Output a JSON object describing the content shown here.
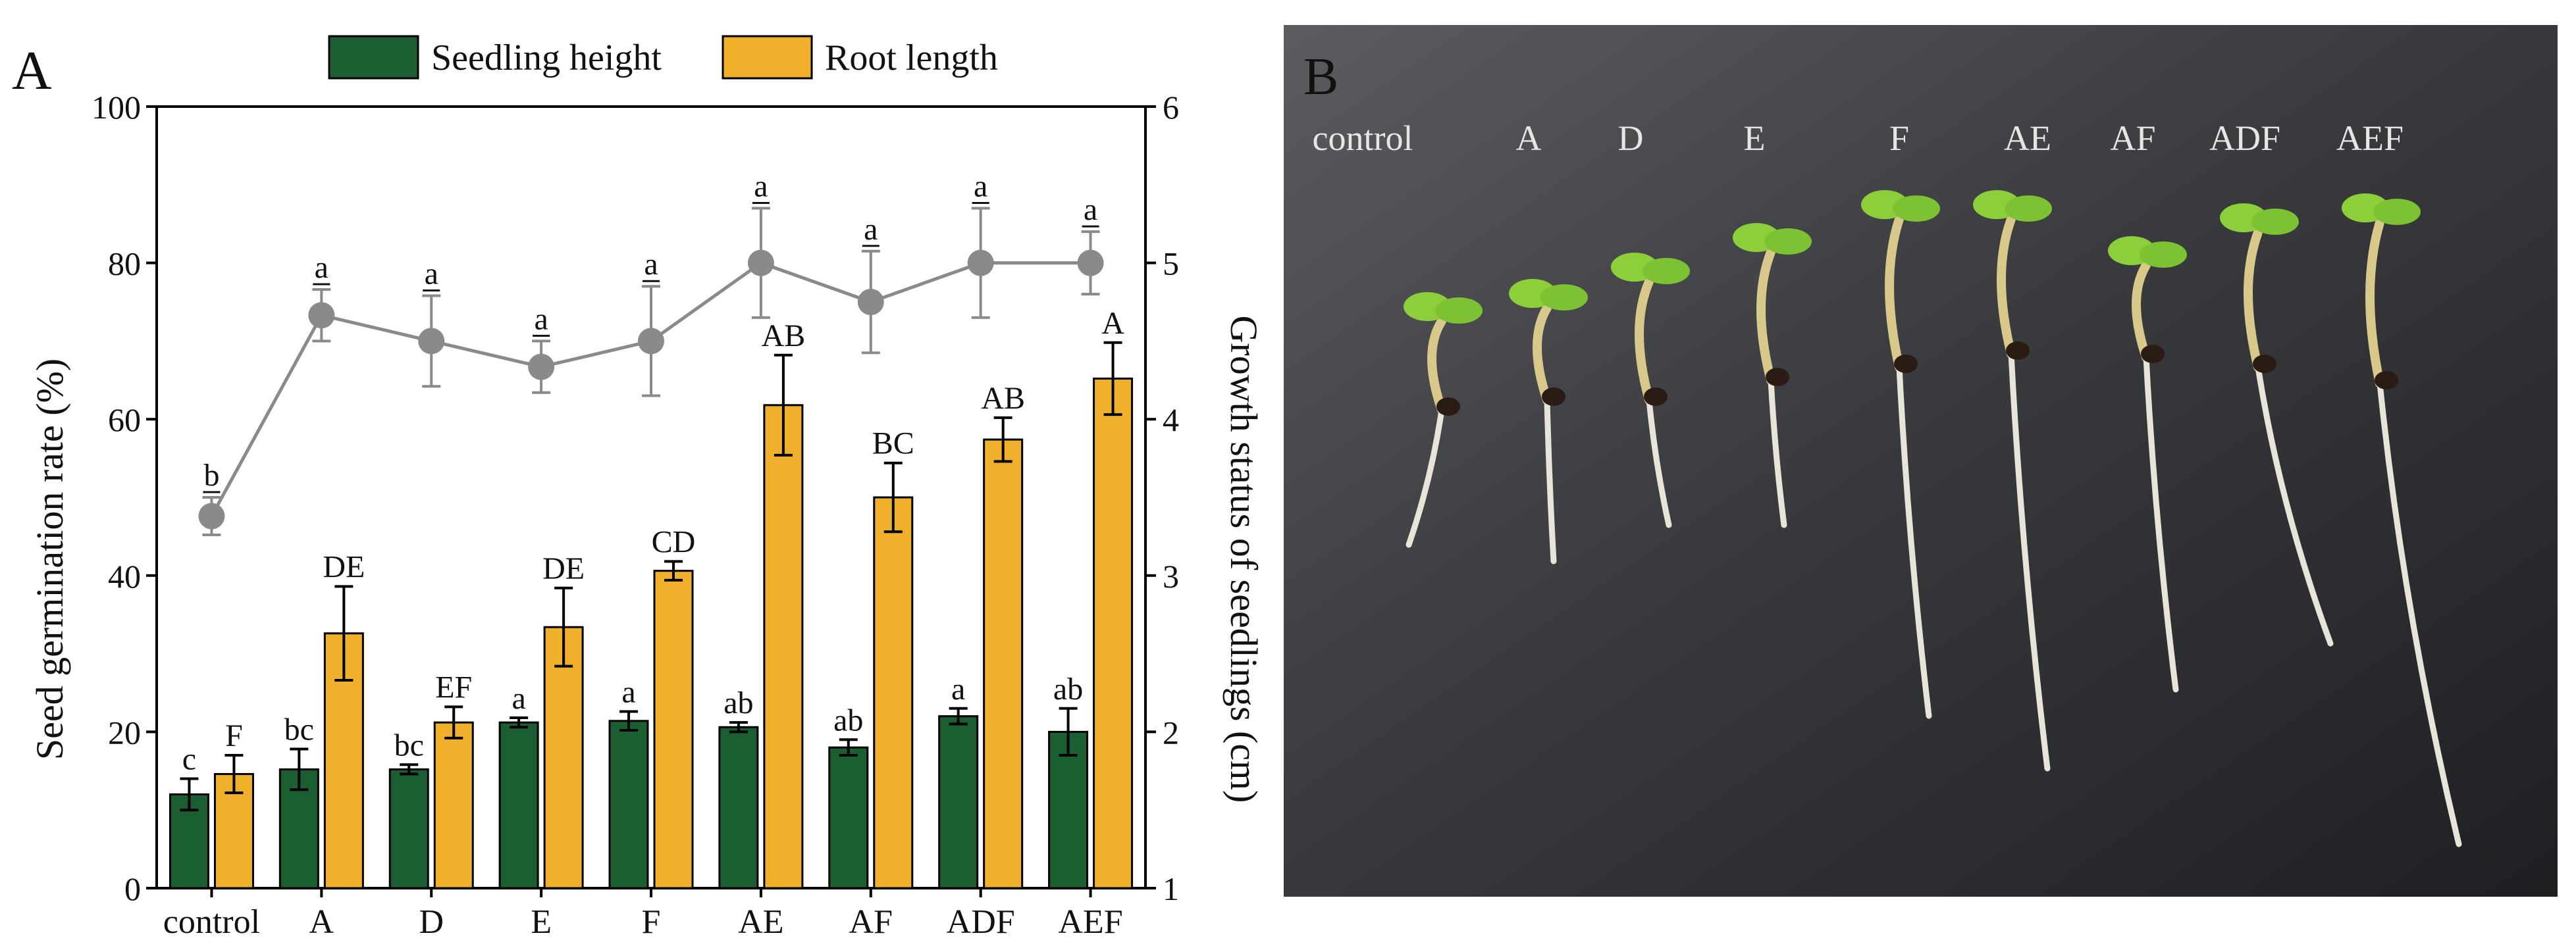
{
  "chart_data": {
    "type": "bar",
    "panel_label": "A",
    "categories": [
      "control",
      "A",
      "D",
      "E",
      "F",
      "AE",
      "AF",
      "ADF",
      "AEF"
    ],
    "left_axis": {
      "label": "Seed germination rate (%)",
      "range": [
        0,
        100
      ],
      "ticks": [
        0,
        20,
        40,
        60,
        80,
        100
      ]
    },
    "right_axis": {
      "label": "Growth status of seedlings (cm)",
      "range": [
        1,
        6
      ],
      "ticks": [
        1,
        2,
        3,
        4,
        5,
        6
      ]
    },
    "legend": {
      "placement": "top-center",
      "entries": [
        "Seedling height",
        "Root length"
      ]
    },
    "series": [
      {
        "name": "Seedling height",
        "kind": "bar",
        "axis": "right",
        "color": "#1b5e31",
        "values": [
          1.6,
          1.76,
          1.76,
          2.06,
          2.07,
          2.03,
          1.9,
          2.1,
          2.0
        ],
        "errors": [
          0.1,
          0.13,
          0.03,
          0.03,
          0.06,
          0.03,
          0.05,
          0.05,
          0.15
        ],
        "letters": [
          "c",
          "bc",
          "bc",
          "a",
          "a",
          "ab",
          "ab",
          "a",
          "ab"
        ]
      },
      {
        "name": "Root length",
        "kind": "bar",
        "axis": "right",
        "color": "#f0b02c",
        "values": [
          1.73,
          2.63,
          2.06,
          2.67,
          3.03,
          4.09,
          3.5,
          3.87,
          4.26
        ],
        "errors": [
          0.12,
          0.3,
          0.1,
          0.25,
          0.06,
          0.32,
          0.22,
          0.14,
          0.23
        ],
        "letters": [
          "F",
          "DE",
          "EF",
          "DE",
          "CD",
          "AB",
          "BC",
          "AB",
          "A"
        ]
      },
      {
        "name": "Seed germination rate",
        "kind": "line",
        "axis": "left",
        "color": "#8a8a8a",
        "values": [
          47.6,
          73.3,
          70.0,
          66.7,
          70.0,
          80.0,
          75.0,
          80.0,
          80.0
        ],
        "errors": [
          2.4,
          3.3,
          5.8,
          3.3,
          7.0,
          7.0,
          6.5,
          7.0,
          4.0
        ],
        "letters": [
          "b",
          "a",
          "a",
          "a",
          "a",
          "a",
          "a",
          "a",
          "a"
        ]
      }
    ]
  },
  "photo": {
    "panel_label": "B",
    "labels": [
      "control",
      "A",
      "D",
      "E",
      "F",
      "AE",
      "AF",
      "ADF",
      "AEF"
    ]
  }
}
